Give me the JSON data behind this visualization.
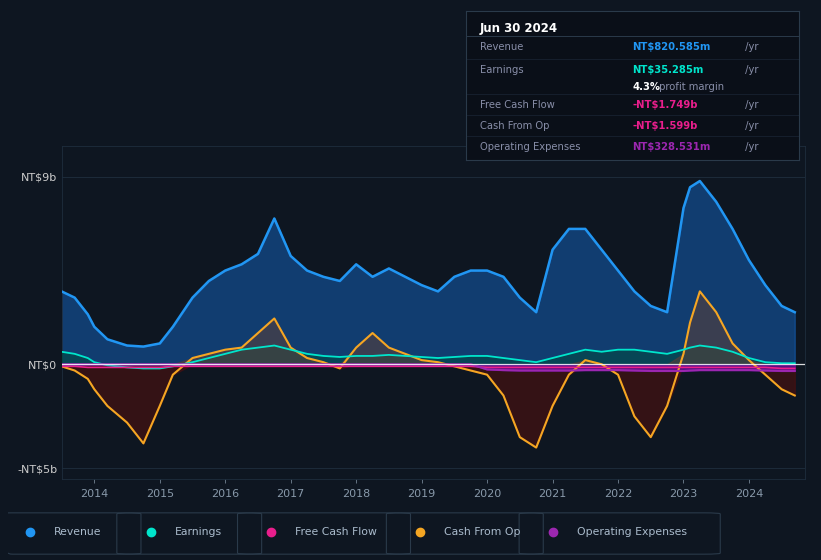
{
  "background_color": "#0e1621",
  "chart_bg": "#0e1621",
  "ylim": [
    -5.5,
    10.5
  ],
  "xlim": [
    2013.5,
    2024.85
  ],
  "xticks": [
    2014,
    2015,
    2016,
    2017,
    2018,
    2019,
    2020,
    2021,
    2022,
    2023,
    2024
  ],
  "revenue_color": "#2196f3",
  "earnings_color": "#00e5cc",
  "fcf_color": "#e91e8c",
  "cashop_color": "#f5a623",
  "opex_color": "#9c27b0",
  "info_box": {
    "date": "Jun 30 2024",
    "revenue_val": "NT$820.585m",
    "revenue_color": "#2196f3",
    "earnings_val": "NT$35.285m",
    "earnings_color": "#00e5cc",
    "fcf_val": "-NT$1.749b",
    "fcf_color": "#e91e8c",
    "cashop_val": "-NT$1.599b",
    "cashop_color": "#e91e8c",
    "opex_val": "NT$328.531m",
    "opex_color": "#9c27b0"
  },
  "x": [
    2013.5,
    2013.7,
    2013.9,
    2014.0,
    2014.2,
    2014.5,
    2014.75,
    2015.0,
    2015.2,
    2015.5,
    2015.75,
    2016.0,
    2016.25,
    2016.5,
    2016.75,
    2017.0,
    2017.25,
    2017.5,
    2017.75,
    2018.0,
    2018.25,
    2018.5,
    2018.75,
    2019.0,
    2019.25,
    2019.5,
    2019.75,
    2020.0,
    2020.25,
    2020.5,
    2020.75,
    2021.0,
    2021.25,
    2021.5,
    2021.75,
    2022.0,
    2022.25,
    2022.5,
    2022.75,
    2023.0,
    2023.1,
    2023.25,
    2023.5,
    2023.75,
    2024.0,
    2024.25,
    2024.5,
    2024.7
  ],
  "revenue": [
    3.5,
    3.2,
    2.4,
    1.8,
    1.2,
    0.9,
    0.85,
    1.0,
    1.8,
    3.2,
    4.0,
    4.5,
    4.8,
    5.3,
    7.0,
    5.2,
    4.5,
    4.2,
    4.0,
    4.8,
    4.2,
    4.6,
    4.2,
    3.8,
    3.5,
    4.2,
    4.5,
    4.5,
    4.2,
    3.2,
    2.5,
    5.5,
    6.5,
    6.5,
    5.5,
    4.5,
    3.5,
    2.8,
    2.5,
    7.5,
    8.5,
    8.8,
    7.8,
    6.5,
    5.0,
    3.8,
    2.8,
    2.5
  ],
  "earnings": [
    0.6,
    0.5,
    0.3,
    0.1,
    -0.05,
    -0.15,
    -0.2,
    -0.2,
    -0.1,
    0.1,
    0.3,
    0.5,
    0.7,
    0.8,
    0.9,
    0.7,
    0.5,
    0.4,
    0.35,
    0.4,
    0.4,
    0.45,
    0.4,
    0.35,
    0.3,
    0.35,
    0.4,
    0.4,
    0.3,
    0.2,
    0.1,
    0.3,
    0.5,
    0.7,
    0.6,
    0.7,
    0.7,
    0.6,
    0.5,
    0.7,
    0.8,
    0.9,
    0.8,
    0.6,
    0.3,
    0.1,
    0.05,
    0.05
  ],
  "cashop": [
    -0.1,
    -0.3,
    -0.7,
    -1.2,
    -2.0,
    -2.8,
    -3.8,
    -2.0,
    -0.5,
    0.3,
    0.5,
    0.7,
    0.8,
    1.5,
    2.2,
    0.8,
    0.3,
    0.1,
    -0.2,
    0.8,
    1.5,
    0.8,
    0.5,
    0.2,
    0.1,
    -0.1,
    -0.3,
    -0.5,
    -1.5,
    -3.5,
    -4.0,
    -2.0,
    -0.5,
    0.2,
    0.0,
    -0.5,
    -2.5,
    -3.5,
    -2.0,
    0.5,
    2.0,
    3.5,
    2.5,
    1.0,
    0.2,
    -0.5,
    -1.2,
    -1.5
  ],
  "fcf": [
    -0.1,
    -0.1,
    -0.15,
    -0.15,
    -0.15,
    -0.15,
    -0.15,
    -0.15,
    -0.1,
    -0.1,
    -0.1,
    -0.1,
    -0.1,
    -0.1,
    -0.1,
    -0.1,
    -0.1,
    -0.1,
    -0.1,
    -0.1,
    -0.1,
    -0.1,
    -0.1,
    -0.1,
    -0.1,
    -0.1,
    -0.1,
    -0.15,
    -0.15,
    -0.15,
    -0.15,
    -0.15,
    -0.15,
    -0.15,
    -0.15,
    -0.15,
    -0.15,
    -0.15,
    -0.15,
    -0.15,
    -0.15,
    -0.15,
    -0.15,
    -0.15,
    -0.15,
    -0.15,
    -0.2,
    -0.2
  ],
  "opex": [
    0.0,
    0.0,
    0.0,
    0.0,
    0.0,
    0.0,
    0.0,
    0.0,
    0.0,
    0.0,
    0.0,
    0.0,
    0.0,
    0.0,
    0.0,
    0.0,
    0.0,
    0.0,
    0.0,
    0.0,
    0.0,
    0.0,
    0.0,
    0.0,
    0.0,
    0.0,
    0.0,
    -0.25,
    -0.28,
    -0.3,
    -0.3,
    -0.3,
    -0.3,
    -0.28,
    -0.28,
    -0.28,
    -0.3,
    -0.32,
    -0.32,
    -0.32,
    -0.3,
    -0.28,
    -0.28,
    -0.28,
    -0.28,
    -0.3,
    -0.32,
    -0.32
  ]
}
